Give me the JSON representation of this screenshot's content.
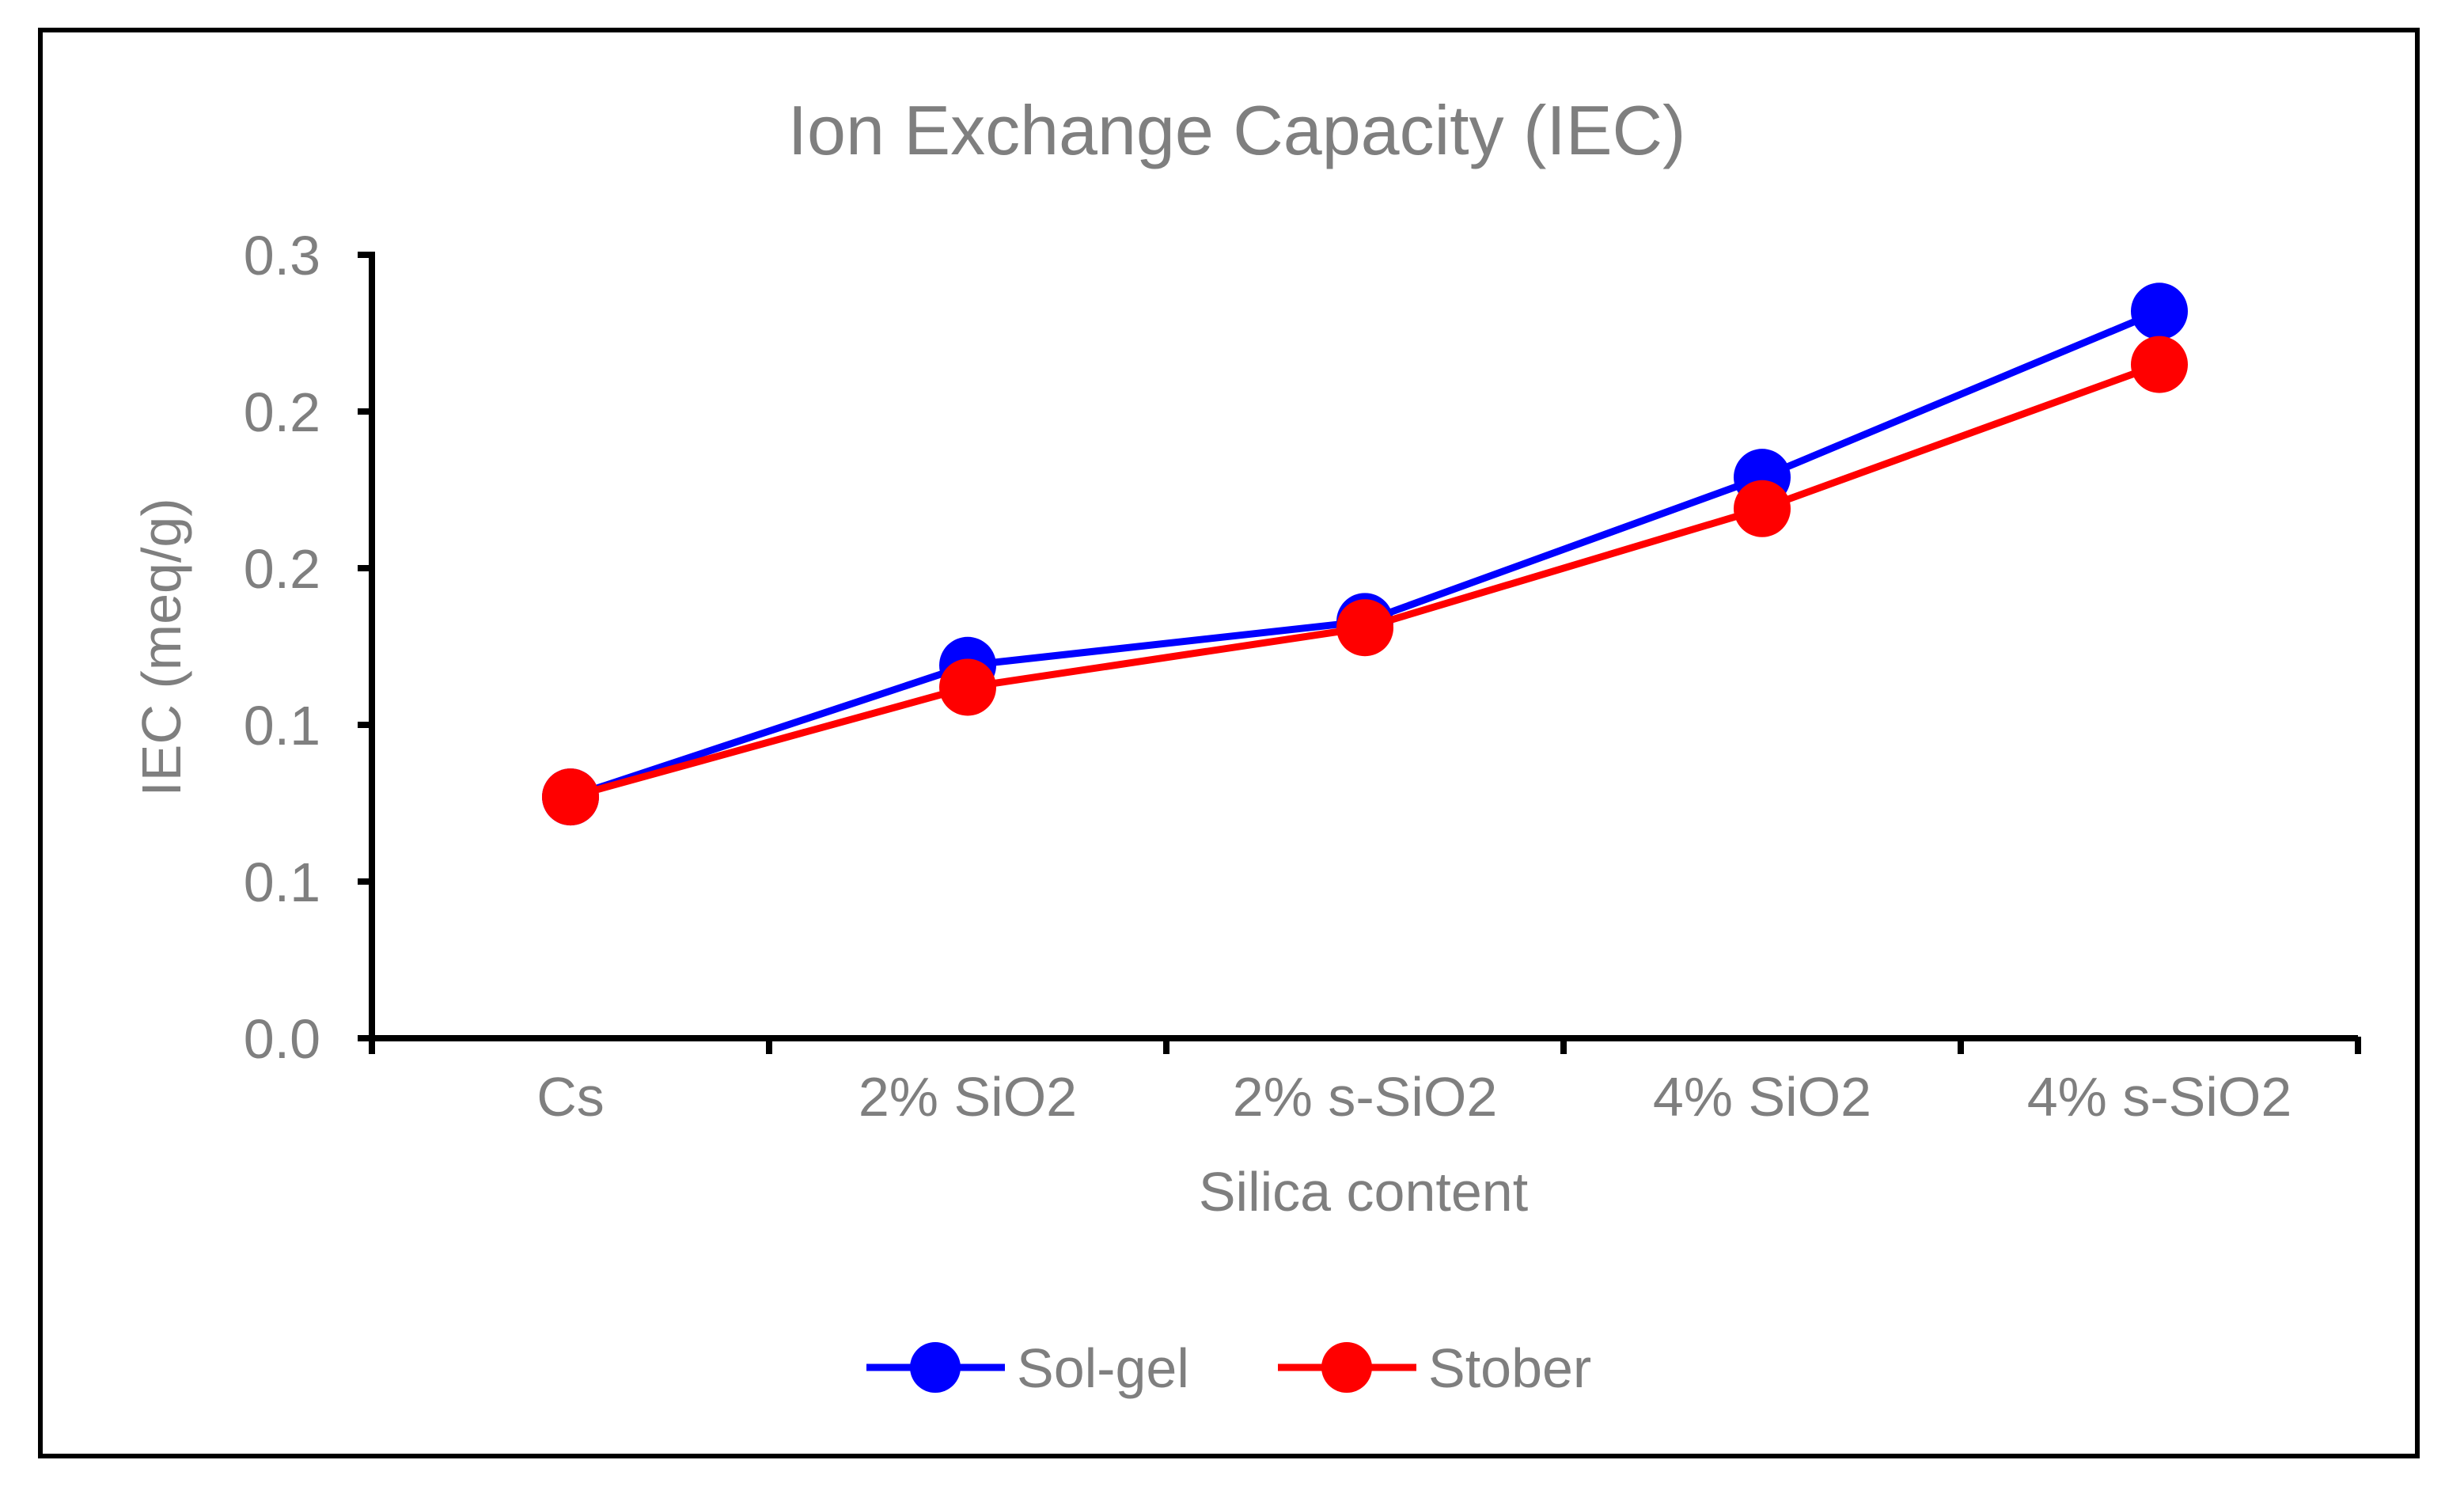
{
  "chart_data": {
    "type": "line",
    "title": "Ion Exchange Capacity (IEC)",
    "xlabel": "Silica content",
    "ylabel": "IEC (meq/g)",
    "categories": [
      "Cs",
      "2% SiO2",
      "2% s-SiO2",
      "4% SiO2",
      "4% s-SiO2"
    ],
    "ylim": [
      0,
      0.25
    ],
    "yticks": [
      0,
      0.05,
      0.1,
      0.15,
      0.2,
      0.25
    ],
    "ytick_labels": [
      "0.0",
      "0.1",
      "0.1",
      "0.2",
      "0.2",
      "0.3"
    ],
    "series": [
      {
        "name": "Sol-gel",
        "color": "#0000ff",
        "values": [
          0.077,
          0.119,
          0.133,
          0.179,
          0.232
        ]
      },
      {
        "name": "Stober",
        "color": "#ff0000",
        "values": [
          0.077,
          0.112,
          0.131,
          0.169,
          0.215
        ]
      }
    ],
    "legend": "bottom",
    "grid": false
  }
}
